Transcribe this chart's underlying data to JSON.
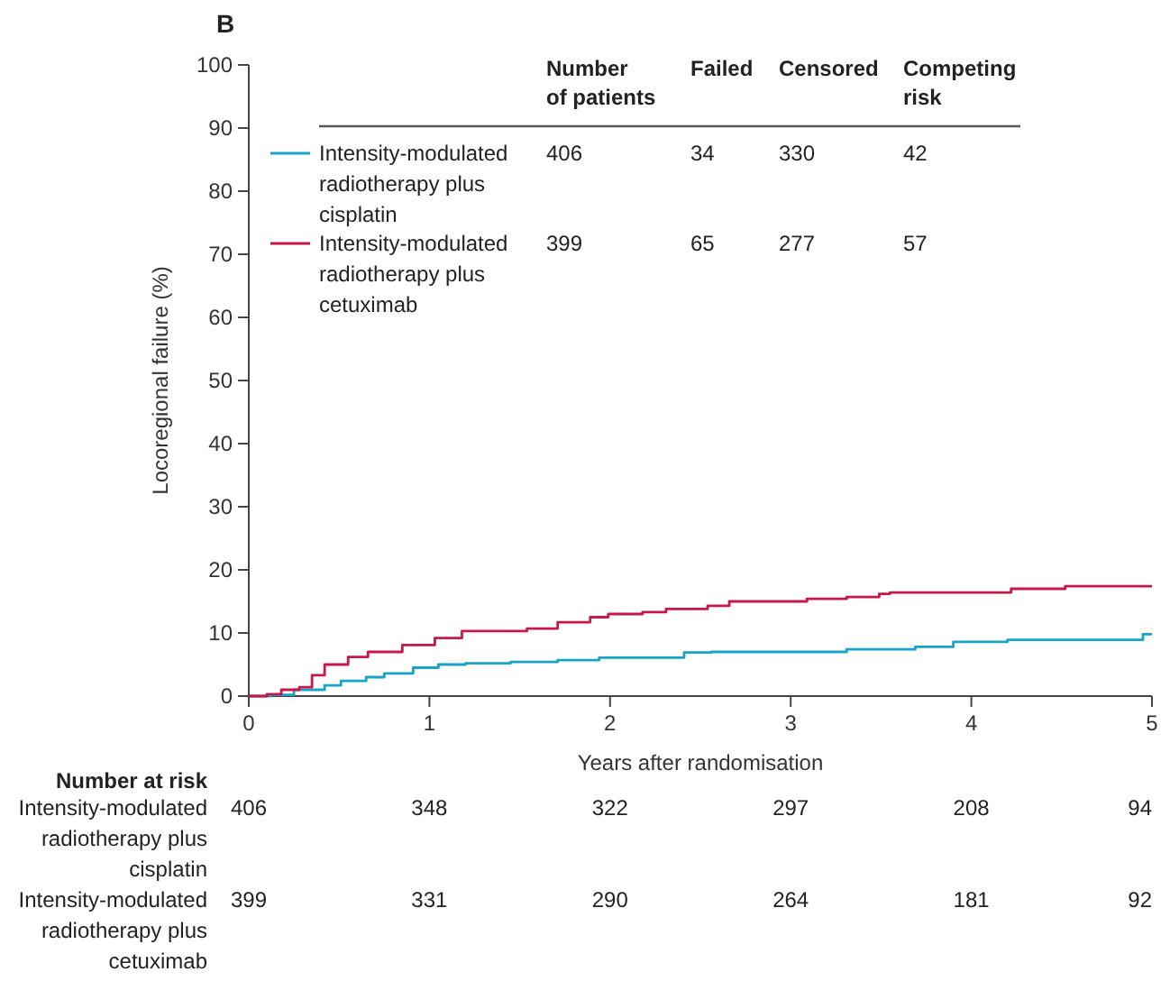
{
  "chart_data": {
    "type": "step",
    "xlabel": "Years after randomisation",
    "ylabel": "Locoregional failure (%)",
    "xlim": [
      0,
      5
    ],
    "xticks": [
      0,
      1,
      2,
      3,
      4,
      5
    ],
    "ylim": [
      0,
      100
    ],
    "yticks": [
      0,
      10,
      20,
      30,
      40,
      50,
      60,
      70,
      80,
      90,
      100
    ],
    "legend": "top",
    "series": [
      {
        "name": "Intensity-modulated radiotherapy plus cisplatin",
        "color": "#1aa3c8",
        "x": [
          0,
          0.12,
          0.25,
          0.42,
          0.51,
          0.65,
          0.75,
          0.91,
          1.05,
          1.2,
          1.45,
          1.71,
          1.94,
          2.41,
          2.56,
          3.31,
          3.69,
          3.9,
          4.2,
          4.95,
          5
        ],
        "values": [
          0,
          0.2,
          1,
          1.7,
          2.4,
          3,
          3.6,
          4.5,
          5,
          5.2,
          5.4,
          5.7,
          6.1,
          6.9,
          7,
          7.4,
          7.8,
          8.6,
          8.9,
          9.8,
          9.8
        ]
      },
      {
        "name": "Intensity-modulated radiotherapy plus cetuximab",
        "color": "#c8184a",
        "x": [
          0,
          0.1,
          0.18,
          0.28,
          0.35,
          0.42,
          0.55,
          0.66,
          0.85,
          1.03,
          1.18,
          1.54,
          1.71,
          1.89,
          1.99,
          2.18,
          2.31,
          2.54,
          2.66,
          3.09,
          3.31,
          3.49,
          3.55,
          4.22,
          4.52,
          5
        ],
        "values": [
          0,
          0.3,
          1,
          1.4,
          3.3,
          5,
          6.2,
          7,
          8.1,
          9.2,
          10.3,
          10.7,
          11.7,
          12.5,
          13,
          13.3,
          13.8,
          14.3,
          15,
          15.4,
          15.7,
          16.2,
          16.4,
          17,
          17.4,
          17.4
        ]
      }
    ],
    "annotations": [
      "B",
      "Number of patients",
      "Failed",
      "Censored",
      "Competing risk",
      "406",
      "34",
      "330",
      "42",
      "399",
      "65",
      "277",
      "57",
      "Number at risk",
      "406",
      "348",
      "322",
      "297",
      "208",
      "94",
      "399",
      "331",
      "290",
      "264",
      "181",
      "92"
    ]
  }
}
